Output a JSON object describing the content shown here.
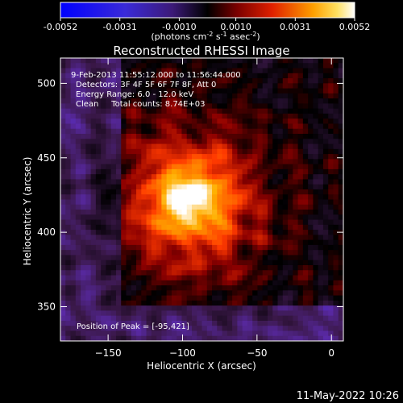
{
  "colorbar": {
    "ticks": [
      "-0.0052",
      "-0.0031",
      "-0.0010",
      "0.0010",
      "0.0031",
      "0.0052"
    ],
    "label_main": "(photons cm",
    "label_exp1": "-2",
    "label_mid1": " s",
    "label_exp2": "-1",
    "label_mid2": " asec",
    "label_exp3": "-2",
    "label_end": ")",
    "range": [
      -0.0052,
      0.0052
    ]
  },
  "plot": {
    "title": "Reconstructed RHESSI Image",
    "info_lines": [
      "9-Feb-2013 11:55:12.000 to 11:56:44.000",
      "Detectors: 3F 4F 5F 6F 7F 8F, Att 0",
      "Energy Range: 6.0 - 12.0 keV",
      "Clean     Total counts: 8.74E+03"
    ],
    "peak_label": "Position of Peak = [-95,421]",
    "footer_date": "11-May-2022 10:26"
  },
  "chart_data": {
    "type": "heatmap",
    "title": "Reconstructed RHESSI Image",
    "xlabel": "Heliocentric X (arcsec)",
    "ylabel": "Heliocentric Y (arcsec)",
    "xlim": [
      -182,
      8
    ],
    "ylim": [
      327,
      517
    ],
    "xticks": [
      -150,
      -100,
      -50,
      0
    ],
    "xtick_labels": [
      "−150",
      "−100",
      "−50",
      "0"
    ],
    "yticks": [
      350,
      400,
      450,
      500
    ],
    "ytick_labels": [
      "350",
      "400",
      "450",
      "500"
    ],
    "peak": [
      -95,
      421
    ],
    "grid": false,
    "colormap": [
      "#2020ff",
      "#5a2aa8",
      "#3a1848",
      "#000000",
      "#8c0000",
      "#ff3a00",
      "#ffb000",
      "#ffffff"
    ]
  }
}
